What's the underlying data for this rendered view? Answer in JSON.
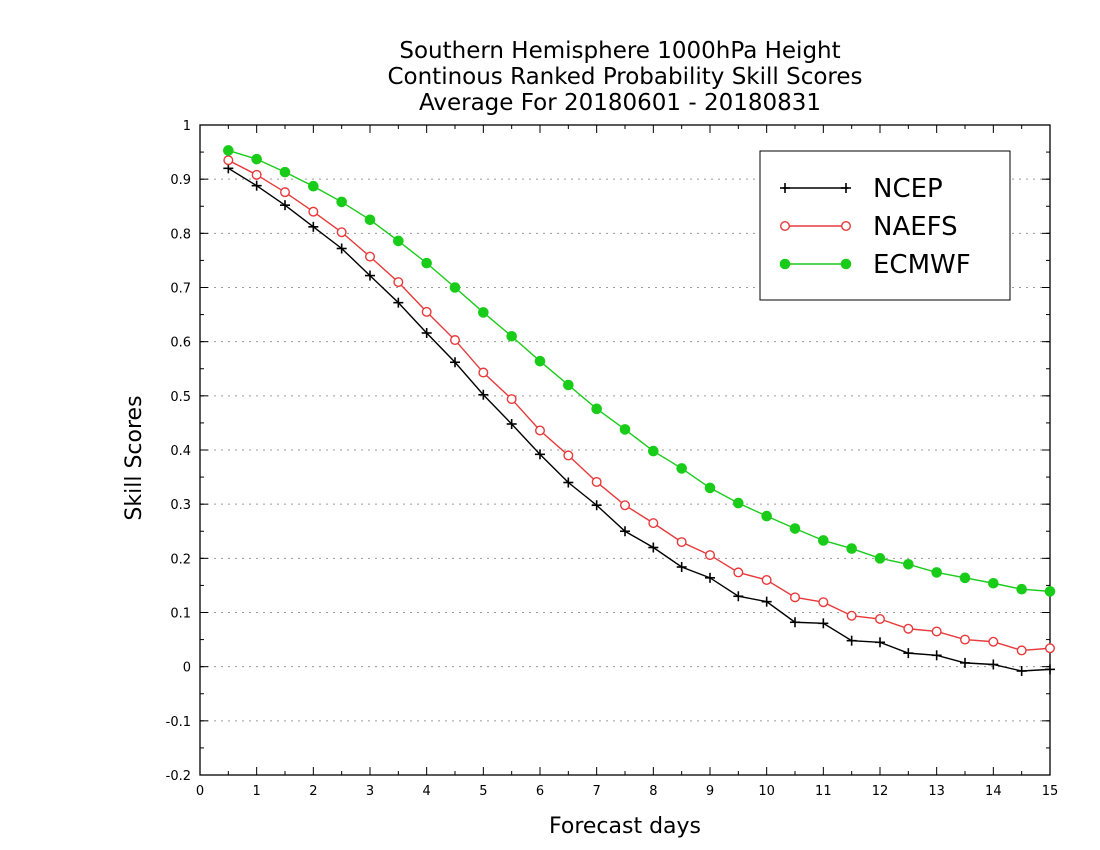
{
  "chart_data": {
    "type": "line",
    "title_lines": [
      "Southern Hemisphere 1000hPa Height",
      "Continous Ranked Probability Skill Scores",
      "Average For 20180601 - 20180831"
    ],
    "xlabel": "Forecast days",
    "ylabel": "Skill Scores",
    "xlim": [
      0,
      15
    ],
    "ylim": [
      -0.2,
      1
    ],
    "x_ticks": [
      "0",
      "1",
      "2",
      "3",
      "4",
      "5",
      "6",
      "7",
      "8",
      "9",
      "10",
      "11",
      "12",
      "13",
      "14",
      "15"
    ],
    "y_ticks": [
      "-0.2",
      "-0.1",
      "0",
      "0.1",
      "0.2",
      "0.3",
      "0.4",
      "0.5",
      "0.6",
      "0.7",
      "0.8",
      "0.9",
      "1"
    ],
    "grid": "horizontal-dotted",
    "legend_position": "top-right",
    "x": [
      0.5,
      1,
      1.5,
      2,
      2.5,
      3,
      3.5,
      4,
      4.5,
      5,
      5.5,
      6,
      6.5,
      7,
      7.5,
      8,
      8.5,
      9,
      9.5,
      10,
      10.5,
      11,
      11.5,
      12,
      12.5,
      13,
      13.5,
      14,
      14.5,
      15
    ],
    "series": [
      {
        "name": "NCEP",
        "color": "#000000",
        "marker": "plus",
        "values": [
          0.92,
          0.888,
          0.852,
          0.812,
          0.772,
          0.722,
          0.672,
          0.616,
          0.562,
          0.502,
          0.448,
          0.392,
          0.34,
          0.298,
          0.25,
          0.22,
          0.184,
          0.164,
          0.13,
          0.12,
          0.082,
          0.08,
          0.048,
          0.045,
          0.025,
          0.021,
          0.007,
          0.004,
          -0.008,
          -0.005
        ]
      },
      {
        "name": "NAEFS",
        "color": "#e8393a",
        "marker": "open-circle",
        "values": [
          0.935,
          0.908,
          0.876,
          0.84,
          0.802,
          0.757,
          0.71,
          0.655,
          0.603,
          0.543,
          0.494,
          0.436,
          0.39,
          0.341,
          0.298,
          0.265,
          0.23,
          0.206,
          0.174,
          0.16,
          0.128,
          0.119,
          0.094,
          0.088,
          0.07,
          0.065,
          0.05,
          0.046,
          0.03,
          0.034
        ]
      },
      {
        "name": "ECMWF",
        "color": "#19cc19",
        "marker": "filled-circle",
        "values": [
          0.953,
          0.937,
          0.913,
          0.887,
          0.858,
          0.825,
          0.786,
          0.745,
          0.7,
          0.654,
          0.61,
          0.564,
          0.52,
          0.476,
          0.438,
          0.398,
          0.366,
          0.33,
          0.302,
          0.278,
          0.255,
          0.233,
          0.218,
          0.2,
          0.189,
          0.174,
          0.164,
          0.154,
          0.143,
          0.139
        ]
      }
    ]
  }
}
